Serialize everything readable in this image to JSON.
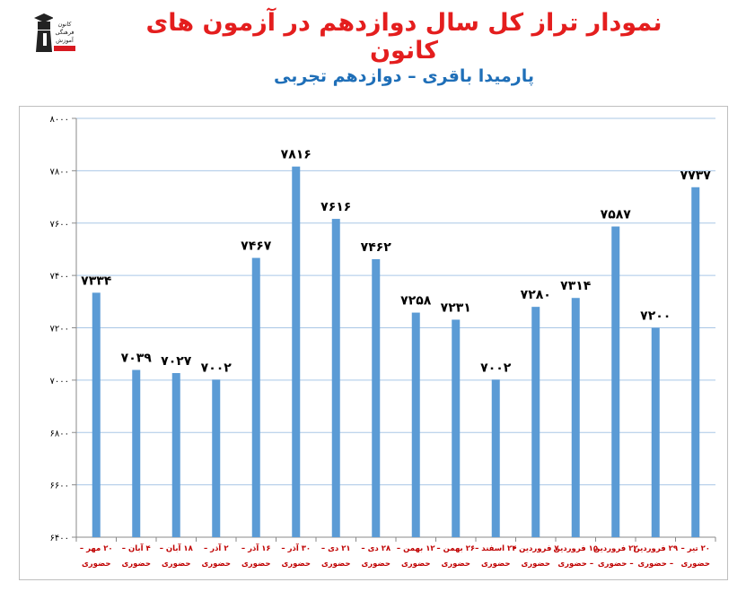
{
  "header": {
    "title": "نمودار تراز کل سال دوازدهم در آزمون های کانون",
    "subtitle": "پارمیدا باقری – دوازدهم تجربی"
  },
  "logo": {
    "icon": "graduate-logo-icon",
    "text": [
      "کانون",
      "فرهنگی",
      "آموزش"
    ]
  },
  "colors": {
    "title": "#e41e1e",
    "subtitle": "#1f6fb8",
    "bar": "#5b9bd5",
    "grid": "#a9c7e6",
    "axis_text": "#c00000"
  },
  "chart_data": {
    "type": "bar",
    "title": "نمودار تراز کل سال دوازدهم در آزمون های کانون",
    "subtitle": "پارمیدا باقری – دوازدهم تجربی",
    "xlabel": "",
    "ylabel": "",
    "ylim": [
      6400,
      8000
    ],
    "yticks": [
      6400,
      6600,
      6800,
      7000,
      7200,
      7400,
      7600,
      7800,
      8000
    ],
    "ytick_labels": [
      "۶۴۰۰",
      "۶۶۰۰",
      "۶۸۰۰",
      "۷۰۰۰",
      "۷۲۰۰",
      "۷۴۰۰",
      "۷۶۰۰",
      "۷۸۰۰",
      "۸۰۰۰"
    ],
    "grid": true,
    "legend": "none",
    "categories": [
      [
        "۲۰ مهر –",
        "حضوری"
      ],
      [
        "۴ آبان –",
        "حضوری"
      ],
      [
        "۱۸ آبان –",
        "حضوری"
      ],
      [
        "۲ آذر –",
        "حضوری"
      ],
      [
        "۱۶ آذر –",
        "حضوری"
      ],
      [
        "۳۰ آذر –",
        "حضوری"
      ],
      [
        "۲۱ دی –",
        "حضوری"
      ],
      [
        "۲۸ دی –",
        "حضوری"
      ],
      [
        "۱۲ بهمن –",
        "حضوری"
      ],
      [
        "۲۶ بهمن –",
        "حضوری"
      ],
      [
        "۲۴ اسفند –",
        "حضوری"
      ],
      [
        "۷ فروردین –",
        "حضوری"
      ],
      [
        "۱۵ فروردین",
        "– حضوری"
      ],
      [
        "۲۲ فروردین",
        "– حضوری"
      ],
      [
        "۲۹ فروردین",
        "– حضوری"
      ],
      [
        "۲۰ تیر –",
        "حضوری"
      ]
    ],
    "values": [
      7334,
      7039,
      7027,
      7002,
      7467,
      7816,
      7616,
      7462,
      7258,
      7231,
      7002,
      7280,
      7314,
      7587,
      7200,
      7737
    ],
    "data_labels": [
      "۷۳۳۴",
      "۷۰۳۹",
      "۷۰۲۷",
      "۷۰۰۲",
      "۷۴۶۷",
      "۷۸۱۶",
      "۷۶۱۶",
      "۷۴۶۲",
      "۷۲۵۸",
      "۷۲۳۱",
      "۷۰۰۲",
      "۷۲۸۰",
      "۷۳۱۴",
      "۷۵۸۷",
      "۷۲۰۰",
      "۷۷۳۷"
    ]
  }
}
